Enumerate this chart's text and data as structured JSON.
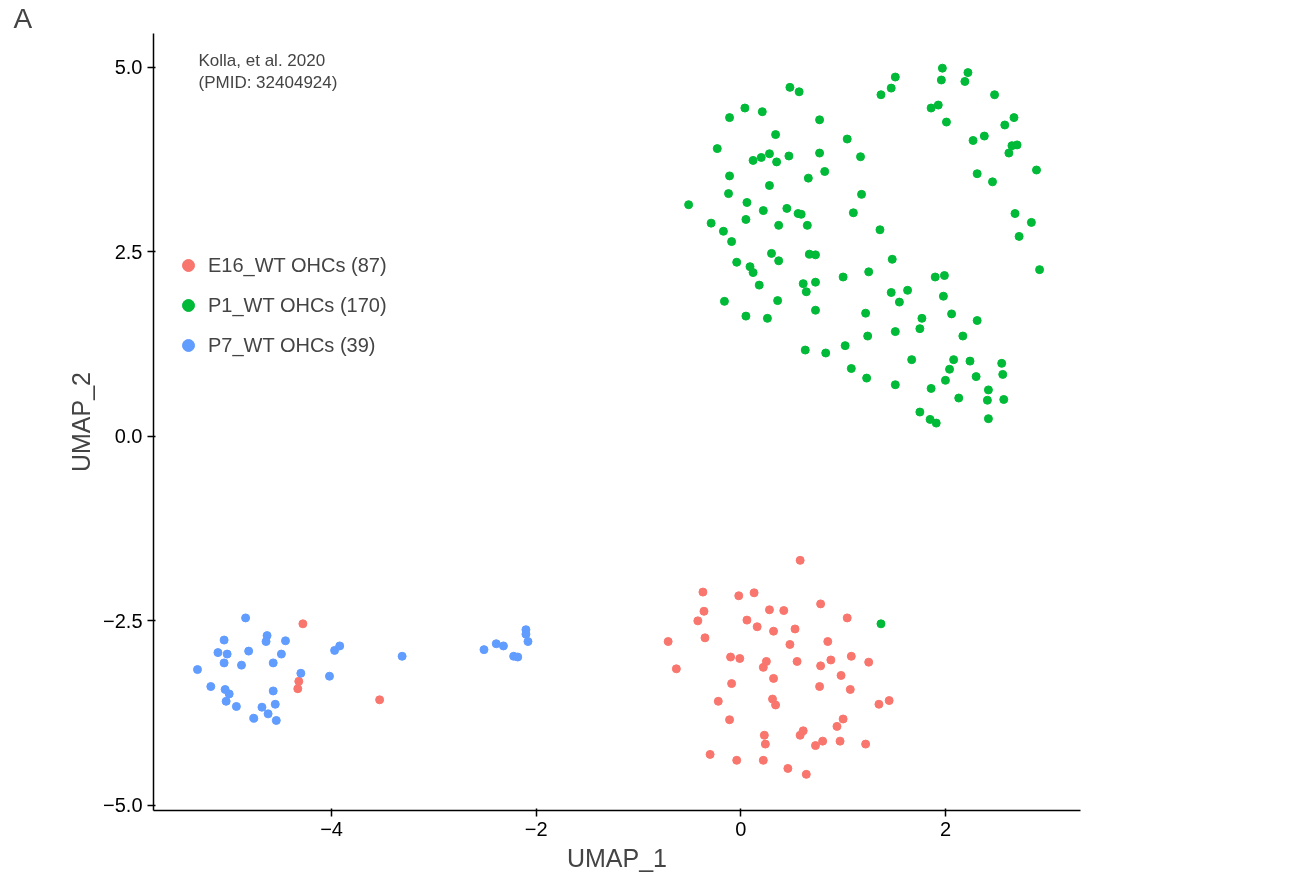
{
  "chart_data": {
    "type": "scatter",
    "xlabel": "UMAP_1",
    "ylabel": "UMAP_2",
    "annotations": [
      "A",
      "Kolla, et al. 2020\n(PMID: 32404924)"
    ],
    "xlim": [
      -5.74,
      3.32
    ],
    "ylim": [
      -5.07,
      5.46
    ],
    "xticks": [
      {
        "value": -4,
        "label": "−4"
      },
      {
        "value": -2,
        "label": "−2"
      },
      0,
      2
    ],
    "yticks": [
      {
        "value": -5,
        "label": "−5.0"
      },
      {
        "value": -2.5,
        "label": "−2.5"
      },
      {
        "value": 0,
        "label": "0.0"
      },
      {
        "value": 2.5,
        "label": "2.5"
      },
      {
        "value": 5,
        "label": "5.0"
      }
    ],
    "grid": false,
    "legend": "top left",
    "marker": "circle",
    "series": [
      {
        "name": "E16_WT OHCs (87)",
        "color": "#f8766d",
        "x": [
          0.58,
          -0.37,
          -0.02,
          0.13,
          -0.36,
          -0.42,
          0.06,
          0.16,
          0.28,
          0.42,
          0.32,
          0.53,
          0.78,
          1.04,
          -0.71,
          -0.35,
          0.48,
          0.85,
          -0.63,
          -0.1,
          -0.01,
          0.25,
          0.22,
          0.55,
          0.78,
          0.88,
          1.08,
          1.25,
          -0.09,
          0.32,
          0.98,
          0.77,
          1.07,
          -0.22,
          0.31,
          0.34,
          1.35,
          1.45,
          -0.11,
          1.0,
          0.94,
          0.23,
          0.24,
          0.61,
          0.58,
          0.97,
          1.22,
          0.8,
          0.73,
          -0.3,
          -0.04,
          0.22,
          0.46,
          0.64,
          -4.28,
          -4.32,
          -4.33,
          -3.53
        ],
        "values": [
          -1.68,
          -2.11,
          -2.16,
          -2.12,
          -2.37,
          -2.5,
          -2.49,
          -2.58,
          -2.35,
          -2.36,
          -2.64,
          -2.61,
          -2.27,
          -2.46,
          -2.78,
          -2.73,
          -2.82,
          -2.78,
          -3.15,
          -2.99,
          -3.01,
          -3.05,
          -3.13,
          -3.05,
          -3.11,
          -3.03,
          -2.98,
          -3.06,
          -3.35,
          -3.28,
          -3.24,
          -3.39,
          -3.43,
          -3.59,
          -3.56,
          -3.64,
          -3.63,
          -3.58,
          -3.84,
          -3.83,
          -3.93,
          -4.05,
          -4.17,
          -3.99,
          -4.05,
          -4.13,
          -4.17,
          -4.13,
          -4.19,
          -4.31,
          -4.39,
          -4.39,
          -4.5,
          -4.58,
          -2.54,
          -3.32,
          -3.42,
          -3.57
        ]
      },
      {
        "name": "P1_WT OHCs (170)",
        "color": "#00ba38",
        "x": [
          1.97,
          2.22,
          1.96,
          2.19,
          1.51,
          1.47,
          1.37,
          0.48,
          0.57,
          2.48,
          0.04,
          0.21,
          -0.11,
          1.86,
          1.93,
          2.67,
          0.77,
          2.01,
          2.58,
          0.34,
          1.04,
          2.27,
          2.38,
          -0.23,
          2.65,
          2.7,
          2.62,
          0.12,
          0.2,
          0.28,
          0.35,
          0.47,
          0.77,
          1.17,
          2.89,
          -0.11,
          0.82,
          0.66,
          2.31,
          2.46,
          0.28,
          -0.12,
          1.18,
          -0.51,
          0.06,
          0.22,
          0.45,
          0.56,
          0.59,
          1.1,
          0.05,
          2.68,
          2.84,
          -0.29,
          0.37,
          0.65,
          -0.17,
          1.36,
          2.72,
          -0.09,
          0.3,
          0.67,
          0.73,
          1.48,
          -0.04,
          0.37,
          0.09,
          0.12,
          2.92,
          1.25,
          1.0,
          1.9,
          1.99,
          0.18,
          0.61,
          0.73,
          0.64,
          1.47,
          1.63,
          1.55,
          1.98,
          -0.16,
          0.36,
          0.05,
          0.26,
          0.73,
          1.22,
          1.77,
          2.06,
          2.31,
          1.75,
          1.51,
          1.24,
          2.17,
          0.63,
          0.83,
          1.02,
          1.67,
          2.08,
          2.24,
          2.55,
          2.04,
          2.56,
          1.08,
          1.23,
          2.3,
          2.0,
          1.51,
          1.86,
          2.42,
          2.13,
          2.41,
          2.57,
          1.75,
          1.85,
          1.91,
          2.42,
          1.37
        ],
        "values": [
          4.99,
          4.93,
          4.83,
          4.81,
          4.87,
          4.72,
          4.63,
          4.73,
          4.67,
          4.63,
          4.45,
          4.4,
          4.32,
          4.45,
          4.49,
          4.32,
          4.29,
          4.26,
          4.22,
          4.09,
          4.03,
          4.01,
          4.07,
          3.9,
          3.94,
          3.95,
          3.84,
          3.74,
          3.78,
          3.83,
          3.72,
          3.8,
          3.84,
          3.79,
          3.61,
          3.53,
          3.59,
          3.5,
          3.56,
          3.45,
          3.4,
          3.29,
          3.28,
          3.14,
          3.17,
          3.06,
          3.09,
          3.02,
          3.01,
          3.03,
          2.94,
          3.02,
          2.9,
          2.89,
          2.86,
          2.86,
          2.78,
          2.8,
          2.71,
          2.64,
          2.48,
          2.47,
          2.46,
          2.4,
          2.36,
          2.38,
          2.3,
          2.22,
          2.26,
          2.23,
          2.16,
          2.16,
          2.18,
          2.05,
          2.07,
          2.09,
          1.96,
          1.95,
          1.98,
          1.82,
          1.9,
          1.83,
          1.84,
          1.63,
          1.6,
          1.71,
          1.67,
          1.6,
          1.66,
          1.57,
          1.46,
          1.42,
          1.36,
          1.36,
          1.17,
          1.13,
          1.23,
          1.04,
          1.04,
          1.02,
          0.99,
          0.91,
          0.84,
          0.92,
          0.79,
          0.81,
          0.76,
          0.7,
          0.65,
          0.63,
          0.52,
          0.49,
          0.5,
          0.33,
          0.23,
          0.18,
          0.24,
          -2.54
        ]
      },
      {
        "name": "P7_WT OHCs (39)",
        "color": "#619cff",
        "x": [
          -4.84,
          -5.05,
          -5.11,
          -5.02,
          -5.05,
          -5.31,
          -4.88,
          -4.81,
          -4.63,
          -4.64,
          -4.45,
          -4.49,
          -4.57,
          -5.18,
          -5.04,
          -5.0,
          -5.03,
          -4.93,
          -4.57,
          -4.55,
          -4.68,
          -4.76,
          -4.62,
          -4.54,
          -4.3,
          -4.02,
          -3.97,
          -3.92,
          -3.31,
          -2.51,
          -2.39,
          -2.32,
          -2.22,
          -2.18,
          -2.1,
          -2.1,
          -2.08
        ],
        "values": [
          -2.46,
          -2.76,
          -2.93,
          -2.95,
          -3.07,
          -3.16,
          -3.1,
          -2.91,
          -2.7,
          -2.78,
          -2.77,
          -2.95,
          -3.07,
          -3.39,
          -3.43,
          -3.49,
          -3.59,
          -3.66,
          -3.45,
          -3.63,
          -3.67,
          -3.82,
          -3.76,
          -3.85,
          -3.21,
          -3.25,
          -2.9,
          -2.84,
          -2.98,
          -2.89,
          -2.81,
          -2.84,
          -2.98,
          -2.99,
          -2.62,
          -2.68,
          -2.78
        ]
      }
    ]
  }
}
